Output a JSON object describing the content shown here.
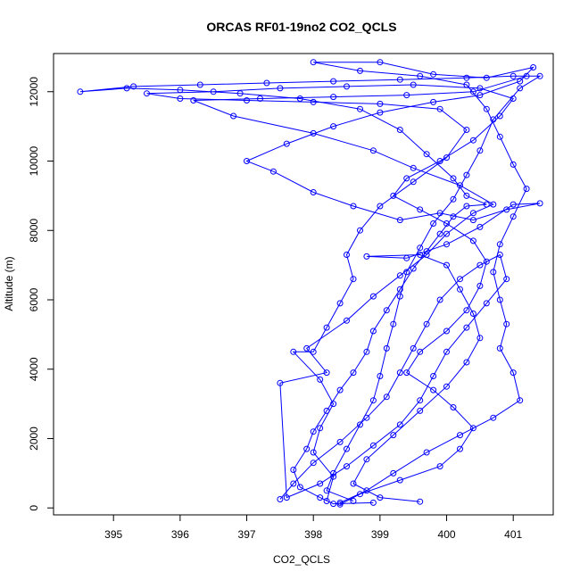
{
  "chart_data": {
    "type": "line",
    "title": "ORCAS RF01-19no2 CO2_QCLS",
    "xlabel": "CO2_QCLS",
    "ylabel": "Altitude (m)",
    "xlim": [
      394.1,
      401.6
    ],
    "ylim": [
      -200,
      13100
    ],
    "x_ticks": [
      395,
      396,
      397,
      398,
      399,
      400,
      401
    ],
    "y_ticks": [
      0,
      2000,
      4000,
      6000,
      8000,
      10000,
      12000
    ],
    "grid": false,
    "color": "#0000ff",
    "series": [
      {
        "points": [
          [
            398.9,
            150
          ],
          [
            398.3,
            120
          ],
          [
            398.1,
            300
          ],
          [
            397.8,
            600
          ],
          [
            397.7,
            1100
          ],
          [
            397.9,
            1700
          ],
          [
            398.0,
            2200
          ],
          [
            398.2,
            2800
          ],
          [
            398.4,
            3400
          ],
          [
            398.6,
            3900
          ],
          [
            398.8,
            4500
          ],
          [
            398.9,
            5100
          ],
          [
            399.1,
            5700
          ],
          [
            399.3,
            6300
          ],
          [
            399.5,
            6900
          ],
          [
            399.7,
            7400
          ],
          [
            399.9,
            7900
          ],
          [
            400.1,
            8400
          ],
          [
            400.3,
            8700
          ],
          [
            400.6,
            8750
          ],
          [
            400.3,
            9000
          ],
          [
            400.1,
            9500
          ],
          [
            399.7,
            10200
          ],
          [
            399.3,
            10900
          ],
          [
            398.7,
            11500
          ],
          [
            397.8,
            11800
          ],
          [
            396.9,
            11950
          ],
          [
            396.0,
            12050
          ],
          [
            395.2,
            12100
          ],
          [
            394.5,
            12000
          ],
          [
            395.3,
            12150
          ],
          [
            396.3,
            12200
          ],
          [
            397.3,
            12250
          ],
          [
            398.3,
            12300
          ],
          [
            399.3,
            12350
          ],
          [
            400.3,
            12400
          ],
          [
            401.0,
            12450
          ],
          [
            401.4,
            12450
          ],
          [
            401.1,
            12100
          ],
          [
            400.7,
            11200
          ],
          [
            400.5,
            10300
          ],
          [
            400.3,
            9600
          ],
          [
            400.1,
            8900
          ],
          [
            399.8,
            8200
          ],
          [
            399.6,
            7500
          ],
          [
            399.4,
            6800
          ],
          [
            399.3,
            6100
          ],
          [
            399.2,
            5300
          ],
          [
            399.1,
            4600
          ],
          [
            399.0,
            3800
          ],
          [
            398.9,
            3100
          ],
          [
            398.7,
            2400
          ],
          [
            398.5,
            1700
          ],
          [
            398.3,
            1000
          ],
          [
            398.2,
            500
          ],
          [
            398.6,
            200
          ]
        ]
      },
      {
        "points": [
          [
            399.6,
            180
          ],
          [
            399.0,
            300
          ],
          [
            398.6,
            700
          ],
          [
            398.8,
            1400
          ],
          [
            399.2,
            2100
          ],
          [
            399.6,
            2800
          ],
          [
            400.0,
            3500
          ],
          [
            400.3,
            4200
          ],
          [
            400.5,
            4900
          ],
          [
            400.4,
            5600
          ],
          [
            400.2,
            6300
          ],
          [
            400.0,
            7000
          ],
          [
            399.6,
            7300
          ],
          [
            398.8,
            7250
          ],
          [
            399.4,
            7200
          ],
          [
            400.0,
            7600
          ],
          [
            400.5,
            8100
          ],
          [
            401.0,
            8750
          ],
          [
            401.4,
            8780
          ],
          [
            400.9,
            8600
          ],
          [
            400.4,
            8300
          ],
          [
            399.9,
            8500
          ],
          [
            399.3,
            8300
          ],
          [
            398.6,
            8700
          ],
          [
            398.0,
            9100
          ],
          [
            397.4,
            9700
          ],
          [
            397.0,
            10000
          ],
          [
            397.6,
            10500
          ],
          [
            398.3,
            11000
          ],
          [
            399.0,
            11400
          ],
          [
            399.8,
            11700
          ],
          [
            400.5,
            11900
          ],
          [
            401.1,
            12300
          ],
          [
            401.3,
            12700
          ],
          [
            400.6,
            12400
          ],
          [
            399.8,
            12500
          ],
          [
            399.0,
            12850
          ],
          [
            398.0,
            12850
          ],
          [
            398.7,
            12600
          ],
          [
            399.6,
            12450
          ],
          [
            400.3,
            12200
          ],
          [
            400.6,
            11500
          ],
          [
            400.8,
            10700
          ],
          [
            401.0,
            9900
          ],
          [
            401.2,
            9200
          ],
          [
            401.0,
            8400
          ],
          [
            400.8,
            7600
          ],
          [
            400.7,
            6800
          ],
          [
            400.8,
            6000
          ],
          [
            400.9,
            5300
          ],
          [
            400.8,
            4600
          ],
          [
            401.0,
            3900
          ],
          [
            401.1,
            3100
          ],
          [
            400.7,
            2600
          ],
          [
            400.2,
            2100
          ],
          [
            399.7,
            1600
          ],
          [
            399.2,
            1000
          ],
          [
            398.8,
            500
          ],
          [
            398.4,
            150
          ]
        ]
      },
      {
        "points": [
          [
            397.5,
            250
          ],
          [
            397.7,
            700
          ],
          [
            398.0,
            1300
          ],
          [
            398.4,
            1900
          ],
          [
            398.8,
            2600
          ],
          [
            399.1,
            3200
          ],
          [
            399.3,
            3900
          ],
          [
            399.5,
            4600
          ],
          [
            399.7,
            5300
          ],
          [
            399.9,
            6000
          ],
          [
            400.2,
            6600
          ],
          [
            400.5,
            7000
          ],
          [
            400.8,
            7300
          ],
          [
            400.9,
            6600
          ],
          [
            400.6,
            5900
          ],
          [
            400.3,
            5200
          ],
          [
            400.0,
            4500
          ],
          [
            399.8,
            3800
          ],
          [
            399.6,
            3100
          ],
          [
            399.3,
            2400
          ],
          [
            398.9,
            1800
          ],
          [
            398.5,
            1200
          ],
          [
            398.1,
            700
          ],
          [
            397.6,
            300
          ],
          [
            397.5,
            3600
          ],
          [
            398.2,
            3900
          ],
          [
            397.9,
            4600
          ],
          [
            398.5,
            5400
          ],
          [
            398.9,
            6100
          ],
          [
            399.3,
            6700
          ],
          [
            399.7,
            7300
          ],
          [
            400.0,
            7900
          ],
          [
            400.4,
            8500
          ],
          [
            400.7,
            8750
          ],
          [
            400.2,
            9300
          ],
          [
            399.5,
            9800
          ],
          [
            398.9,
            10300
          ],
          [
            398.0,
            10800
          ],
          [
            396.8,
            11300
          ],
          [
            396.2,
            11750
          ],
          [
            397.2,
            11800
          ],
          [
            398.3,
            11850
          ],
          [
            399.4,
            11900
          ],
          [
            400.4,
            12000
          ],
          [
            401.2,
            12450
          ]
        ]
      },
      {
        "points": [
          [
            398.4,
            100
          ],
          [
            398.7,
            400
          ],
          [
            399.3,
            800
          ],
          [
            399.9,
            1200
          ],
          [
            400.2,
            1700
          ],
          [
            400.4,
            2300
          ],
          [
            400.1,
            2900
          ],
          [
            399.8,
            3400
          ],
          [
            399.4,
            3900
          ],
          [
            399.6,
            4500
          ],
          [
            400.0,
            5100
          ],
          [
            400.3,
            5700
          ],
          [
            400.5,
            6400
          ],
          [
            400.6,
            7100
          ],
          [
            400.4,
            7700
          ],
          [
            400.0,
            8200
          ],
          [
            399.6,
            8600
          ],
          [
            399.2,
            9000
          ],
          [
            399.4,
            9500
          ],
          [
            399.9,
            10000
          ],
          [
            400.4,
            10600
          ],
          [
            400.8,
            11300
          ],
          [
            401.0,
            11800
          ],
          [
            400.5,
            12100
          ],
          [
            399.5,
            12200
          ],
          [
            398.5,
            12150
          ],
          [
            397.5,
            12100
          ],
          [
            396.5,
            12000
          ],
          [
            395.5,
            11950
          ],
          [
            396.0,
            11800
          ],
          [
            397.0,
            11750
          ],
          [
            398.0,
            11700
          ],
          [
            399.0,
            11650
          ],
          [
            399.9,
            11500
          ],
          [
            400.3,
            10900
          ],
          [
            400.0,
            10100
          ],
          [
            399.5,
            9400
          ],
          [
            399.0,
            8700
          ],
          [
            398.7,
            8000
          ],
          [
            398.5,
            7300
          ],
          [
            398.6,
            6600
          ],
          [
            398.4,
            5900
          ],
          [
            398.2,
            5200
          ],
          [
            398.0,
            4500
          ],
          [
            397.7,
            4500
          ],
          [
            398.1,
            3700
          ],
          [
            398.3,
            3000
          ],
          [
            398.1,
            2300
          ],
          [
            398.0,
            1600
          ],
          [
            398.3,
            900
          ],
          [
            398.2,
            200
          ]
        ]
      }
    ]
  }
}
